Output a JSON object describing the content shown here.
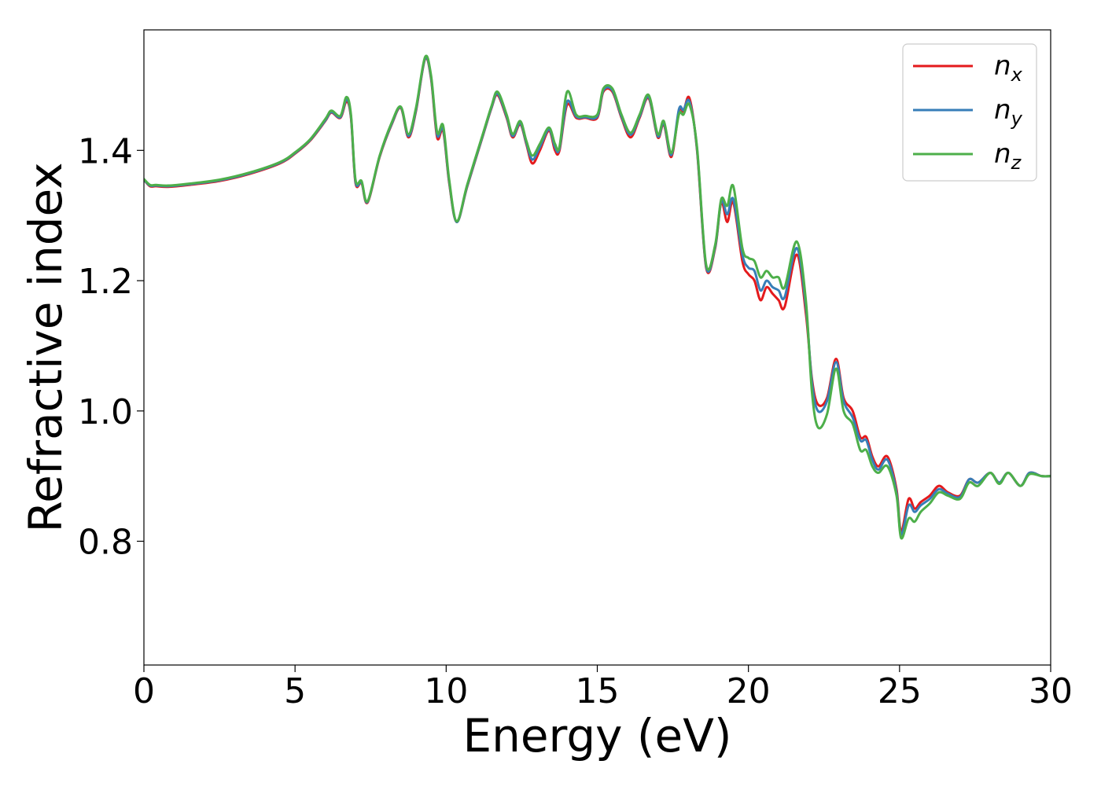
{
  "chart_data": {
    "type": "line",
    "xlabel": "Energy (eV)",
    "ylabel": "Refractive index",
    "xlim": [
      0,
      30
    ],
    "ylim": [
      0.61,
      1.585
    ],
    "xticks": [
      0,
      5,
      10,
      15,
      20,
      25,
      30
    ],
    "xtick_labels": [
      "0",
      "5",
      "10",
      "15",
      "20",
      "25",
      "30"
    ],
    "yticks": [
      0.8,
      1.0,
      1.2,
      1.4
    ],
    "ytick_labels": [
      "0.8",
      "1.0",
      "1.2",
      "1.4"
    ],
    "grid": false,
    "legend_position": "top-right",
    "series": [
      {
        "name": "n_x",
        "label_main": "n",
        "label_sub": "x",
        "color": "#e41a1c",
        "x": [
          0,
          0.2,
          0.4,
          0.8,
          1.5,
          2.5,
          3.5,
          4.5,
          5.0,
          5.5,
          6.0,
          6.2,
          6.5,
          6.7,
          6.85,
          7.0,
          7.2,
          7.4,
          7.8,
          8.2,
          8.5,
          8.75,
          9.0,
          9.3,
          9.5,
          9.7,
          9.9,
          10.1,
          10.35,
          10.7,
          11.2,
          11.5,
          11.7,
          12.0,
          12.2,
          12.45,
          12.65,
          12.85,
          13.1,
          13.4,
          13.6,
          13.75,
          14.0,
          14.3,
          14.6,
          15.0,
          15.2,
          15.5,
          15.8,
          16.1,
          16.4,
          16.7,
          17.0,
          17.2,
          17.45,
          17.7,
          17.85,
          18.05,
          18.3,
          18.6,
          18.9,
          19.1,
          19.3,
          19.5,
          19.8,
          20.0,
          20.2,
          20.4,
          20.6,
          20.8,
          21.0,
          21.2,
          21.6,
          21.9,
          22.1,
          22.3,
          22.6,
          22.9,
          23.15,
          23.45,
          23.7,
          23.9,
          24.1,
          24.3,
          24.6,
          24.9,
          25.05,
          25.3,
          25.5,
          25.7,
          26.0,
          26.3,
          26.6,
          27.0,
          27.3,
          27.6,
          28.0,
          28.3,
          28.6,
          29.0,
          29.3,
          29.7,
          30.0
        ],
        "y": [
          1.355,
          1.345,
          1.345,
          1.344,
          1.347,
          1.353,
          1.364,
          1.38,
          1.395,
          1.415,
          1.445,
          1.458,
          1.45,
          1.475,
          1.45,
          1.35,
          1.35,
          1.32,
          1.39,
          1.44,
          1.465,
          1.42,
          1.46,
          1.54,
          1.51,
          1.42,
          1.43,
          1.35,
          1.29,
          1.345,
          1.42,
          1.465,
          1.485,
          1.45,
          1.42,
          1.44,
          1.41,
          1.38,
          1.4,
          1.43,
          1.4,
          1.4,
          1.47,
          1.45,
          1.45,
          1.45,
          1.49,
          1.49,
          1.45,
          1.42,
          1.45,
          1.48,
          1.42,
          1.44,
          1.39,
          1.46,
          1.46,
          1.48,
          1.4,
          1.22,
          1.25,
          1.32,
          1.29,
          1.32,
          1.23,
          1.21,
          1.2,
          1.17,
          1.19,
          1.18,
          1.17,
          1.16,
          1.24,
          1.15,
          1.05,
          1.01,
          1.02,
          1.08,
          1.02,
          1.0,
          0.96,
          0.96,
          0.93,
          0.915,
          0.93,
          0.88,
          0.815,
          0.865,
          0.85,
          0.86,
          0.87,
          0.885,
          0.875,
          0.87,
          0.895,
          0.89,
          0.905,
          0.89,
          0.905,
          0.885,
          0.905,
          0.9,
          0.9
        ]
      },
      {
        "name": "n_y",
        "label_main": "n",
        "label_sub": "y",
        "color": "#377eb8",
        "x": [
          0,
          0.2,
          0.4,
          0.8,
          1.5,
          2.5,
          3.5,
          4.5,
          5.0,
          5.5,
          6.0,
          6.2,
          6.5,
          6.7,
          6.85,
          7.0,
          7.2,
          7.4,
          7.8,
          8.2,
          8.5,
          8.75,
          9.0,
          9.3,
          9.5,
          9.7,
          9.9,
          10.1,
          10.35,
          10.7,
          11.2,
          11.5,
          11.7,
          12.0,
          12.2,
          12.45,
          12.65,
          12.85,
          13.1,
          13.4,
          13.6,
          13.75,
          14.0,
          14.3,
          14.6,
          15.0,
          15.2,
          15.5,
          15.8,
          16.1,
          16.4,
          16.7,
          17.0,
          17.2,
          17.45,
          17.7,
          17.85,
          18.05,
          18.3,
          18.6,
          18.9,
          19.1,
          19.3,
          19.5,
          19.8,
          20.0,
          20.2,
          20.4,
          20.6,
          20.8,
          21.0,
          21.2,
          21.6,
          21.9,
          22.1,
          22.3,
          22.6,
          22.9,
          23.15,
          23.45,
          23.7,
          23.9,
          24.1,
          24.3,
          24.6,
          24.9,
          25.05,
          25.3,
          25.5,
          25.7,
          26.0,
          26.3,
          26.6,
          27.0,
          27.3,
          27.6,
          28.0,
          28.3,
          28.6,
          29.0,
          29.3,
          29.7,
          30.0
        ],
        "y": [
          1.355,
          1.346,
          1.346,
          1.345,
          1.348,
          1.354,
          1.365,
          1.381,
          1.396,
          1.416,
          1.446,
          1.459,
          1.451,
          1.478,
          1.452,
          1.352,
          1.351,
          1.321,
          1.391,
          1.441,
          1.466,
          1.422,
          1.462,
          1.541,
          1.512,
          1.424,
          1.433,
          1.352,
          1.29,
          1.346,
          1.421,
          1.466,
          1.487,
          1.452,
          1.422,
          1.442,
          1.412,
          1.386,
          1.405,
          1.432,
          1.405,
          1.403,
          1.475,
          1.452,
          1.451,
          1.452,
          1.492,
          1.492,
          1.452,
          1.424,
          1.452,
          1.482,
          1.422,
          1.442,
          1.393,
          1.463,
          1.462,
          1.475,
          1.402,
          1.222,
          1.252,
          1.322,
          1.302,
          1.325,
          1.24,
          1.22,
          1.215,
          1.185,
          1.2,
          1.19,
          1.185,
          1.175,
          1.25,
          1.16,
          1.045,
          1.0,
          1.015,
          1.075,
          1.015,
          0.99,
          0.955,
          0.955,
          0.925,
          0.91,
          0.925,
          0.875,
          0.81,
          0.855,
          0.845,
          0.855,
          0.865,
          0.88,
          0.873,
          0.868,
          0.895,
          0.89,
          0.905,
          0.89,
          0.905,
          0.885,
          0.905,
          0.9,
          0.9
        ]
      },
      {
        "name": "n_z",
        "label_main": "n",
        "label_sub": "z",
        "color": "#4daf4a",
        "x": [
          0,
          0.2,
          0.4,
          0.8,
          1.5,
          2.5,
          3.5,
          4.5,
          5.0,
          5.5,
          6.0,
          6.2,
          6.5,
          6.7,
          6.85,
          7.0,
          7.2,
          7.4,
          7.8,
          8.2,
          8.5,
          8.75,
          9.0,
          9.3,
          9.5,
          9.7,
          9.9,
          10.1,
          10.35,
          10.7,
          11.2,
          11.5,
          11.7,
          12.0,
          12.2,
          12.45,
          12.65,
          12.85,
          13.1,
          13.4,
          13.6,
          13.75,
          14.0,
          14.3,
          14.6,
          15.0,
          15.2,
          15.5,
          15.8,
          16.1,
          16.4,
          16.7,
          17.0,
          17.2,
          17.45,
          17.7,
          17.85,
          18.05,
          18.3,
          18.6,
          18.9,
          19.1,
          19.3,
          19.5,
          19.8,
          20.0,
          20.2,
          20.4,
          20.6,
          20.8,
          21.0,
          21.2,
          21.6,
          21.9,
          22.1,
          22.3,
          22.6,
          22.9,
          23.15,
          23.45,
          23.7,
          23.9,
          24.1,
          24.3,
          24.6,
          24.9,
          25.05,
          25.3,
          25.5,
          25.7,
          26.0,
          26.3,
          26.6,
          27.0,
          27.3,
          27.6,
          28.0,
          28.3,
          28.6,
          29.0,
          29.3,
          29.7,
          30.0
        ],
        "y": [
          1.356,
          1.347,
          1.347,
          1.346,
          1.349,
          1.355,
          1.366,
          1.382,
          1.397,
          1.417,
          1.448,
          1.461,
          1.453,
          1.482,
          1.455,
          1.355,
          1.353,
          1.322,
          1.392,
          1.443,
          1.467,
          1.425,
          1.465,
          1.543,
          1.515,
          1.428,
          1.438,
          1.355,
          1.291,
          1.348,
          1.423,
          1.468,
          1.49,
          1.455,
          1.425,
          1.445,
          1.415,
          1.392,
          1.41,
          1.435,
          1.41,
          1.406,
          1.49,
          1.455,
          1.453,
          1.455,
          1.495,
          1.495,
          1.455,
          1.427,
          1.455,
          1.485,
          1.425,
          1.445,
          1.396,
          1.455,
          1.455,
          1.47,
          1.405,
          1.225,
          1.255,
          1.325,
          1.315,
          1.345,
          1.25,
          1.235,
          1.23,
          1.205,
          1.215,
          1.205,
          1.205,
          1.19,
          1.26,
          1.17,
          1.03,
          0.975,
          0.995,
          1.065,
          1.0,
          0.98,
          0.94,
          0.94,
          0.915,
          0.905,
          0.915,
          0.87,
          0.805,
          0.835,
          0.83,
          0.845,
          0.858,
          0.875,
          0.87,
          0.865,
          0.89,
          0.885,
          0.905,
          0.888,
          0.905,
          0.885,
          0.903,
          0.9,
          0.9
        ]
      }
    ]
  }
}
